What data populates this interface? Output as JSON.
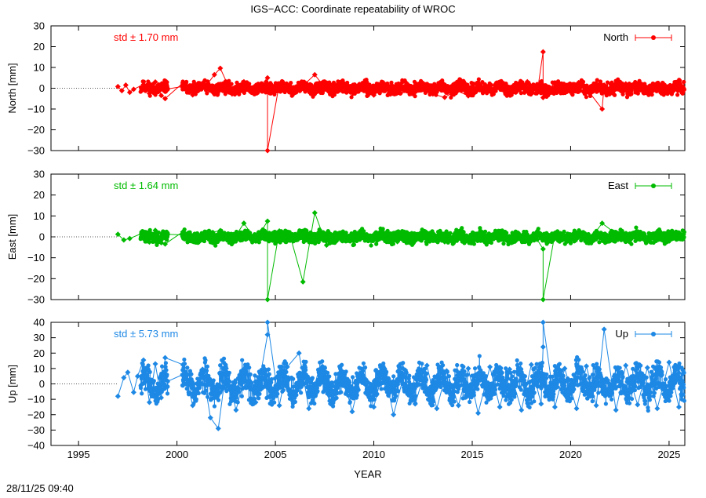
{
  "title": "IGS−ACC: Coordinate repeatability of WROC",
  "timestamp": "28/11/25 09:40",
  "xlabel": "YEAR",
  "chart_data": [
    {
      "type": "scatter",
      "component": "north",
      "ylabel": "North [mm]",
      "legend": "North",
      "std_label": "std ± 1.70 mm",
      "color": "#ff0000",
      "xlim": [
        1993.6,
        2025.8
      ],
      "ylim": [
        -30,
        30
      ],
      "yticks": [
        -30,
        -20,
        -10,
        0,
        10,
        20,
        30
      ],
      "std": 1.7,
      "grid": false,
      "legend_position": "top-right",
      "x": [
        1997.0,
        1997.2,
        1997.4,
        1997.6,
        1997.8,
        1998.3,
        1998.6,
        1998.9,
        1999.2,
        1999.4,
        2000.3,
        2000.8,
        2001.5,
        2001.9,
        2002.2,
        2002.8,
        2003.4,
        2004.0,
        2004.6,
        2004.6,
        2005.2,
        2005.8,
        2006.4,
        2007.0,
        2007.6,
        2008.2,
        2008.8,
        2009.4,
        2010.0,
        2010.6,
        2011.2,
        2011.8,
        2012.4,
        2013.0,
        2013.6,
        2014.2,
        2014.8,
        2015.4,
        2016.0,
        2016.6,
        2017.2,
        2017.8,
        2018.3,
        2018.6,
        2018.6,
        2019.2,
        2019.8,
        2020.4,
        2021.0,
        2021.6,
        2021.7,
        2022.2,
        2022.8,
        2023.4,
        2024.0,
        2024.6,
        2025.2,
        2025.7
      ],
      "y": [
        0.8,
        -1.2,
        1.5,
        -2.0,
        -0.5,
        1.8,
        -2.5,
        3.0,
        -3.5,
        -5.0,
        2.5,
        -3.2,
        1.4,
        6.5,
        9.6,
        -2.8,
        3.1,
        -1.5,
        5.0,
        -30.0,
        2.2,
        -1.6,
        1.2,
        6.5,
        -0.7,
        2.4,
        -1.9,
        0.9,
        -3.3,
        1.7,
        -2.1,
        1.0,
        -0.4,
        -2.8,
        -4.4,
        -1.0,
        -3.7,
        1.5,
        -1.8,
        2.3,
        0.4,
        3.1,
        -2.3,
        17.5,
        -4.5,
        2.0,
        -1.1,
        2.7,
        -2.6,
        -10.0,
        1.5,
        -0.9,
        2.1,
        -1.7,
        0.6,
        -2.4,
        1.3,
        -1.8
      ]
    },
    {
      "type": "scatter",
      "component": "east",
      "ylabel": "East [mm]",
      "legend": "East",
      "std_label": "std ± 1.64 mm",
      "color": "#00bb00",
      "xlim": [
        1993.6,
        2025.8
      ],
      "ylim": [
        -30,
        30
      ],
      "yticks": [
        -30,
        -20,
        -10,
        0,
        10,
        20,
        30
      ],
      "std": 1.64,
      "grid": false,
      "legend_position": "top-right",
      "x": [
        1997.0,
        1997.3,
        1997.6,
        1998.3,
        1998.6,
        1998.9,
        1999.2,
        1999.4,
        2000.3,
        2000.8,
        2001.5,
        2002.2,
        2002.8,
        2003.4,
        2004.0,
        2004.6,
        2004.6,
        2005.2,
        2005.8,
        2006.4,
        2007.0,
        2007.6,
        2008.2,
        2008.8,
        2009.4,
        2010.0,
        2010.6,
        2011.2,
        2011.8,
        2012.4,
        2013.0,
        2013.6,
        2014.2,
        2014.8,
        2015.4,
        2016.0,
        2016.6,
        2017.2,
        2017.8,
        2018.3,
        2018.6,
        2018.6,
        2019.2,
        2019.8,
        2020.4,
        2021.0,
        2021.6,
        2022.2,
        2022.8,
        2023.4,
        2024.0,
        2024.6,
        2025.2,
        2025.7
      ],
      "y": [
        1.2,
        -1.5,
        -0.8,
        2.0,
        -2.5,
        3.1,
        -2.8,
        -3.4,
        2.4,
        -2.1,
        1.6,
        3.0,
        -2.2,
        6.5,
        -1.7,
        7.5,
        -30.0,
        2.8,
        -1.2,
        -21.5,
        11.5,
        -4.0,
        1.6,
        -1.9,
        2.2,
        -1.5,
        1.3,
        -2.3,
        0.7,
        -1.0,
        1.8,
        -2.4,
        0.9,
        -1.6,
        2.1,
        -0.8,
        1.5,
        -2.0,
        0.6,
        -1.3,
        -5.8,
        -30.0,
        1.4,
        -1.7,
        2.6,
        -0.9,
        6.5,
        2.2,
        -1.4,
        1.9,
        -1.1,
        1.2,
        -0.6,
        0.8
      ]
    },
    {
      "type": "scatter",
      "component": "up",
      "ylabel": "Up [mm]",
      "legend": "Up",
      "std_label": "std ± 5.73 mm",
      "color": "#1e88e5",
      "xlim": [
        1993.6,
        2025.8
      ],
      "ylim": [
        -40,
        40
      ],
      "yticks": [
        -40,
        -30,
        -20,
        -10,
        0,
        10,
        20,
        30,
        40
      ],
      "std": 5.73,
      "grid": false,
      "legend_position": "top-right",
      "x": [
        1997.0,
        1997.3,
        1997.5,
        1997.8,
        1998.0,
        1998.3,
        1998.6,
        1998.9,
        1999.2,
        1999.4,
        2000.3,
        2000.8,
        2001.3,
        2001.7,
        2002.1,
        2002.5,
        2003.0,
        2003.5,
        2004.0,
        2004.6,
        2004.6,
        2005.2,
        2005.6,
        2006.2,
        2006.7,
        2007.2,
        2007.8,
        2008.3,
        2008.9,
        2009.4,
        2010.0,
        2010.5,
        2011.0,
        2011.6,
        2012.1,
        2012.7,
        2013.2,
        2013.7,
        2014.3,
        2014.8,
        2015.3,
        2015.9,
        2016.4,
        2016.9,
        2017.5,
        2018.0,
        2018.5,
        2018.6,
        2018.6,
        2019.2,
        2019.7,
        2020.3,
        2020.8,
        2021.3,
        2021.7,
        2022.3,
        2022.8,
        2023.4,
        2023.9,
        2024.4,
        2025.0,
        2025.5,
        2025.7
      ],
      "y": [
        -8.0,
        4.0,
        7.5,
        -5.5,
        5.0,
        15.5,
        -12.0,
        13.0,
        -9.0,
        17.0,
        12.5,
        -14.0,
        9.5,
        -22.0,
        -29.0,
        10.0,
        -17.0,
        8.0,
        -12.0,
        32.0,
        40.0,
        -14.0,
        11.0,
        20.0,
        -16.0,
        9.0,
        -13.0,
        11.5,
        -18.0,
        8.0,
        -15.0,
        10.5,
        -20.0,
        9.0,
        -13.0,
        12.0,
        -16.0,
        8.5,
        -14.0,
        10.0,
        -19.0,
        11.0,
        -15.0,
        9.5,
        -17.0,
        12.5,
        -13.0,
        24.0,
        40.0,
        -15.0,
        10.0,
        -16.0,
        11.5,
        -14.0,
        35.5,
        -17.0,
        12.0,
        -13.5,
        10.5,
        -16.0,
        14.0,
        -15.0,
        9.0
      ]
    }
  ],
  "x_ticks": [
    1995,
    2000,
    2005,
    2010,
    2015,
    2020,
    2025
  ]
}
